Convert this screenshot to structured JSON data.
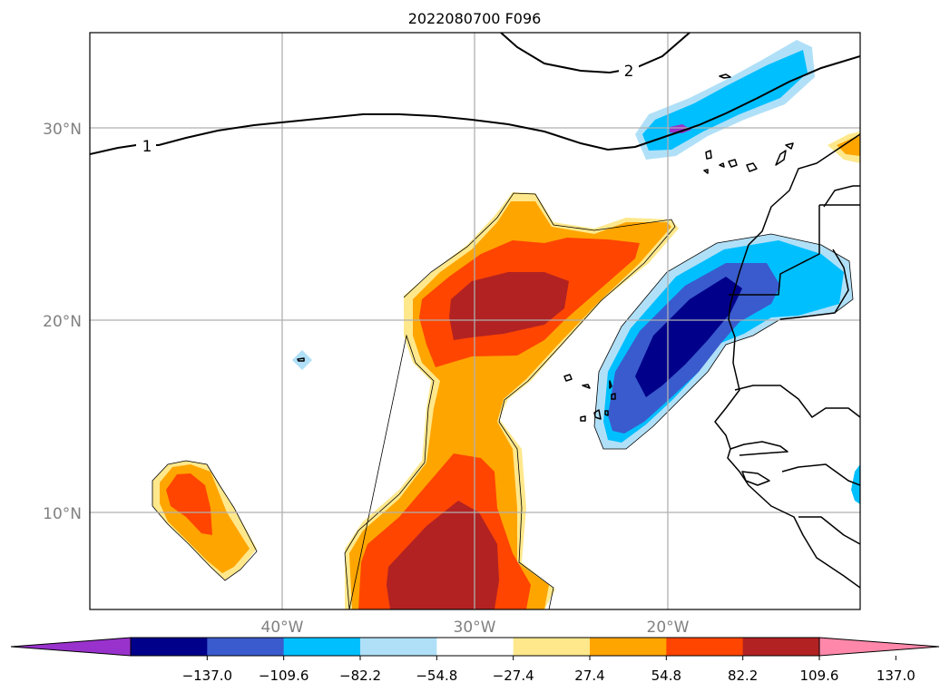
{
  "title": "2022080700 F096",
  "map": {
    "lat_labels": [
      {
        "lat": 30,
        "text": "30°N"
      },
      {
        "lat": 20,
        "text": "20°N"
      },
      {
        "lat": 10,
        "text": "10°N"
      }
    ],
    "lon_labels": [
      {
        "lon": -40,
        "text": "40°W"
      },
      {
        "lon": -30,
        "text": "30°W"
      },
      {
        "lon": -20,
        "text": "20°W"
      }
    ],
    "lat_range": [
      5,
      35
    ],
    "lon_range": [
      -50,
      -10
    ],
    "contour_labels": [
      {
        "text": "1",
        "lon": -47.8,
        "lat": 29.0
      },
      {
        "text": "2",
        "lon": -22.0,
        "lat": 33.0
      }
    ]
  },
  "colorbar": {
    "colors": [
      "#9932CC",
      "#00008B",
      "#3A5BCD",
      "#00BFFF",
      "#B0E0F8",
      "#FFFFFF",
      "#FFE88C",
      "#FFA500",
      "#FF4500",
      "#B22222",
      "#FF88AA"
    ],
    "ticks": [
      "−137.0",
      "−109.6",
      "−82.2",
      "−54.8",
      "−27.4",
      "27.4",
      "54.8",
      "82.2",
      "109.6",
      "137.0"
    ],
    "tick_values": [
      -137.0,
      -109.6,
      -82.2,
      -54.8,
      -27.4,
      27.4,
      54.8,
      82.2,
      109.6,
      137.0
    ],
    "extend": "both"
  },
  "colors": {
    "grid": "#b0b0b0",
    "tick_label": "#808080"
  }
}
